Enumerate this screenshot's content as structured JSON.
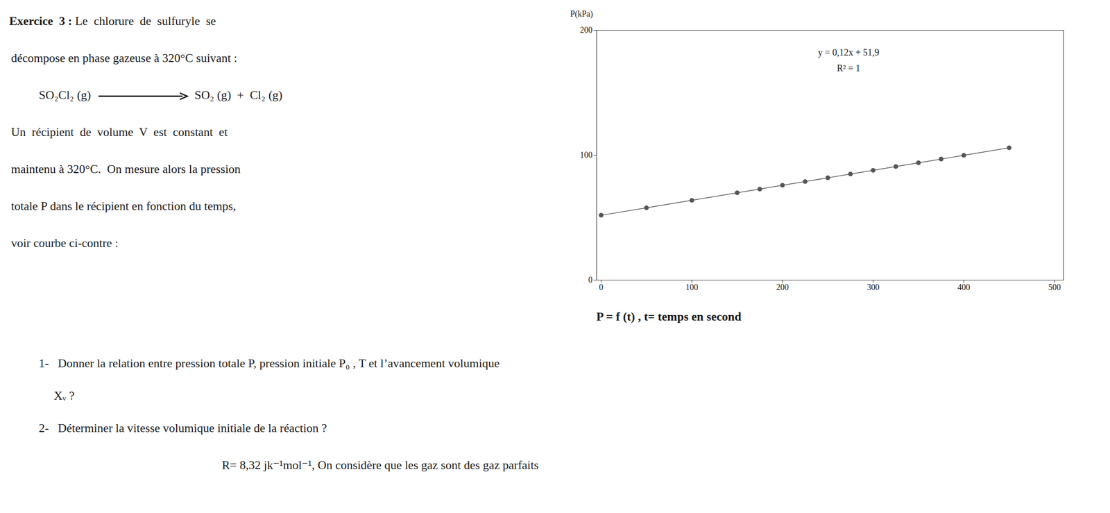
{
  "chart_data": {
    "type": "line",
    "x": [
      0,
      50,
      100,
      150,
      175,
      200,
      225,
      250,
      275,
      300,
      325,
      350,
      375,
      400,
      450
    ],
    "values": [
      51.9,
      57.9,
      63.9,
      69.9,
      72.9,
      75.9,
      78.9,
      81.9,
      84.9,
      87.9,
      90.9,
      93.9,
      96.9,
      99.9,
      105.9
    ],
    "color": "#555555",
    "marker": "o",
    "line_style": "solid",
    "ylabel": "P(kPa)",
    "xlim": [
      -5,
      510
    ],
    "xticks": [
      0,
      100,
      200,
      300,
      400,
      500
    ],
    "ylim": [
      0,
      200
    ],
    "yticks": [
      0,
      100,
      200
    ],
    "grid": false,
    "annotations": [
      "y = 0,12x + 51,9",
      "R² = 1"
    ],
    "caption": "P = f (t) , t= temps en second"
  },
  "document": [
    [
      "Exercice  3 :",
      " Le  chlorure  de  sulfuryle  se"
    ],
    [
      "décompose en phase gazeuse à 320°C suivant :"
    ],
    [
      "SO₂Cl₂ (g)",
      "SO₂ (g)  +  Cl₂ (g)"
    ],
    [
      "Un  récipient  de  volume  V  est  constant  et"
    ],
    [
      "maintenu à 320°C.  On mesure alors la pression"
    ],
    [
      "totale P dans le récipient en fonction du temps,"
    ],
    [
      "voir courbe ci-contre :"
    ]
  ],
  "questions": [
    "1-   Donner la relation entre pression totale P, pression initiale P₀ , T et l’avancement volumique",
    "     Xᵥ ?",
    "2-   Déterminer la vitesse volumique initiale de la réaction ?",
    "R= 8,32 jk⁻¹mol⁻¹, On considère que les gaz sont des gaz parfaits"
  ]
}
